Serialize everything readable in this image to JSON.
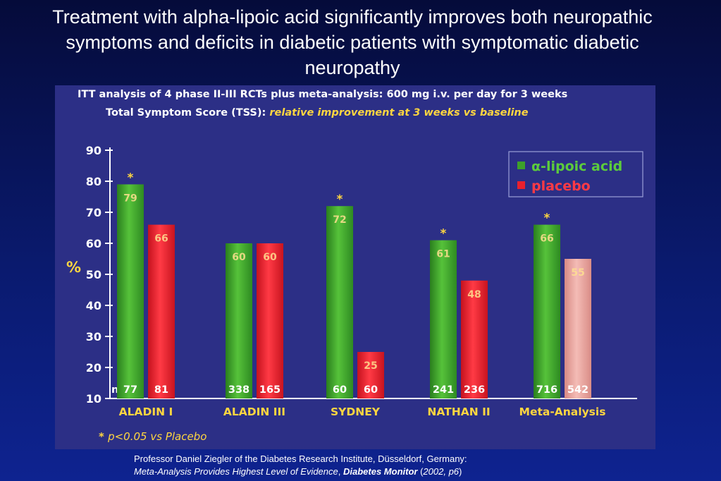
{
  "slide": {
    "title": "Treatment with alpha-lipoic acid significantly improves both neuropathic symptoms and deficits in diabetic patients with symptomatic diabetic neuropathy"
  },
  "footer": {
    "line1": "Professor Daniel Ziegler of the Diabetes Research Institute, Düsseldorf, Germany:",
    "line2_italic": "Meta-Analysis Provides Highest Level of Evidence",
    "line2_sep": ", ",
    "line2_bold": "Diabetes Monitor",
    "line2_open": " (",
    "line2_year": "2002, p6",
    "line2_close": ")"
  },
  "colors": {
    "alpha_lipoic": "#3da02a",
    "placebo": "#e8202e",
    "placebo_meta": "#e8a6a0",
    "accent_yellow": "#ffd640",
    "panel": "#2c2f86"
  },
  "chart_data": {
    "type": "bar",
    "header_line1": "ITT analysis of 4 phase II-III RCTs plus meta-analysis: 600 mg i.v. per day for 3 weeks",
    "header_line2_prefix": "Total Symptom Score (TSS): ",
    "header_line2_highlight": "relative improvement at 3 weeks vs baseline",
    "ylabel": "%",
    "ylim": [
      10,
      90
    ],
    "yticks": [
      10,
      20,
      30,
      40,
      50,
      60,
      70,
      80,
      90
    ],
    "categories": [
      "ALADIN I",
      "ALADIN III",
      "SYDNEY",
      "NATHAN II",
      "Meta-Analysis"
    ],
    "series": [
      {
        "name": "α-lipoic acid",
        "values": [
          79,
          60,
          72,
          61,
          66
        ],
        "n": [
          "77",
          "338",
          "60",
          "241",
          "716"
        ]
      },
      {
        "name": "placebo",
        "values": [
          66,
          60,
          25,
          48,
          55
        ],
        "n": [
          "81",
          "165",
          "60",
          "236",
          "542"
        ]
      }
    ],
    "significant": [
      true,
      false,
      true,
      true,
      true
    ],
    "significance_marker": "*",
    "n_prefix": "n=",
    "footnote_marker": "* ",
    "footnote": "p<0.05 vs Placebo",
    "legend_position": "top-right"
  }
}
